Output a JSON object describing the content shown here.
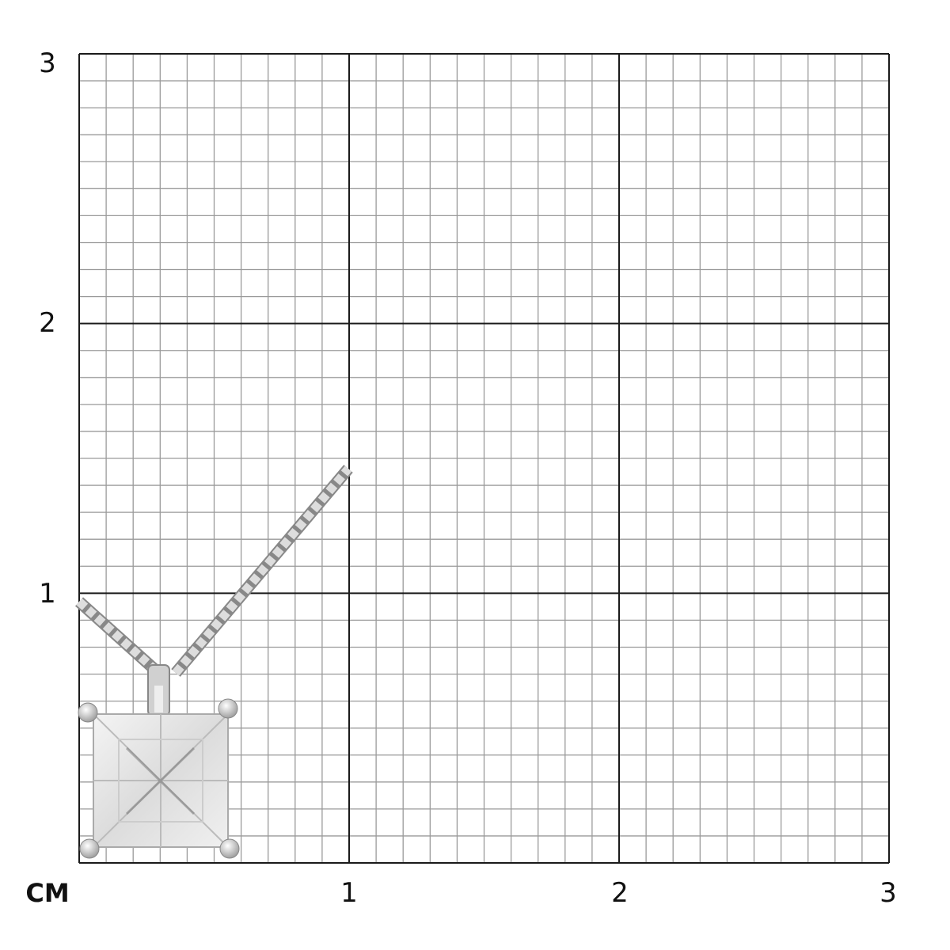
{
  "scale": {
    "unit_label": "CM",
    "x_labels": [
      "1",
      "2",
      "3"
    ],
    "y_labels": [
      "1",
      "2",
      "3"
    ],
    "range_cm": [
      0,
      3
    ],
    "minor_divisions_per_cm": 10
  },
  "colors": {
    "major_grid": "#1a1a1a",
    "minor_grid": "#9a9a9a",
    "metal": "#c8c8c8"
  },
  "product": {
    "icon": "princess-cut-diamond-pendant-icon"
  }
}
